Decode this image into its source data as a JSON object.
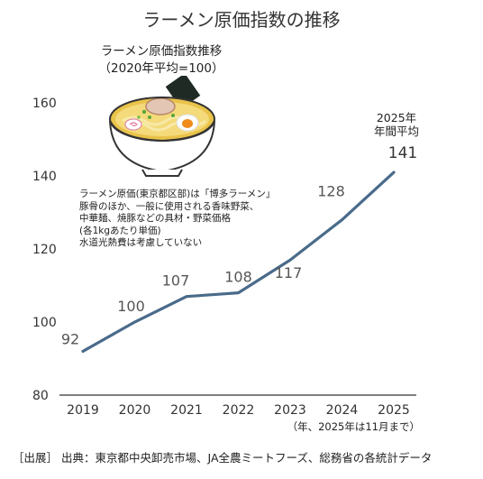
{
  "chart_data": {
    "type": "line",
    "title": "ラーメン原価指数の推移",
    "inset_title_lines": [
      "ラーメン原価指数推移",
      "（2020年平均=100）"
    ],
    "categories": [
      "2019",
      "2020",
      "2021",
      "2022",
      "2023",
      "2024",
      "2025"
    ],
    "values": [
      92,
      100,
      107,
      108,
      117,
      128,
      141
    ],
    "data_labels": [
      "92",
      "100",
      "107",
      "108",
      "117",
      "128",
      "141"
    ],
    "yticks": [
      "80",
      "100",
      "120",
      "140",
      "160"
    ],
    "ylim": [
      80,
      163
    ],
    "grid": false,
    "line_color": "#4a6b8a",
    "annotations": {
      "last_point_lines": [
        "2025年",
        "年間平均"
      ],
      "note_lines": [
        "ラーメン原価(東京都区部)は「博多ラーメン」",
        "豚骨のほか、一般に使用される香味野菜、",
        "中華麺、焼豚などの具材・野菜価格",
        "(各1kgあたり単価)",
        "水道光熱費は考慮していない"
      ],
      "x_unit": "（年、2025年は11月まで）",
      "source": "［出展］ 出典：東京都中央卸売市場、JA全農ミートフーズ、総務省の各統計データ"
    }
  }
}
